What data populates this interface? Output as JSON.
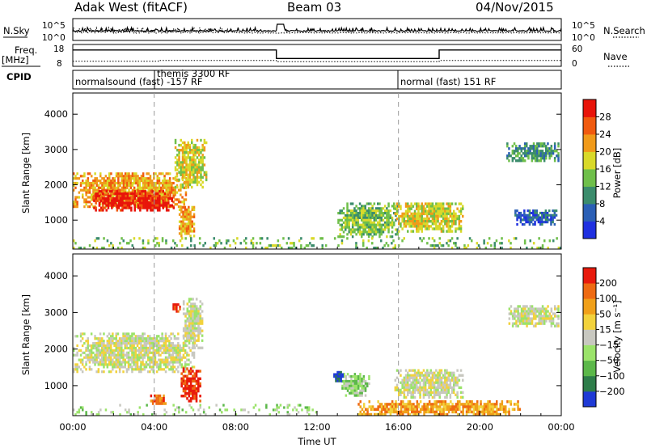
{
  "header": {
    "title": "Adak West (fitACF)",
    "beam": "Beam 03",
    "date": "04/Nov/2015"
  },
  "params": {
    "nsky_label": "N.Sky",
    "nsearch_label": "N.Search",
    "nsky_ticks": [
      "10^5",
      "10^0"
    ],
    "freq_label": "Freq.",
    "freq_unit": "[MHz]",
    "freq_ticks": [
      "18",
      "8"
    ],
    "nave_label": "Nave",
    "nave_ticks": [
      "60",
      "0"
    ],
    "cpid_label": "CPID",
    "cpid_segments": [
      {
        "label": "normalsound (fast) -157 RF",
        "start_hour": 0
      },
      {
        "label": "themis 3300 RF",
        "start_hour": 4
      },
      {
        "label": "normal (fast) 151 RF",
        "start_hour": 16
      }
    ],
    "freq_steps": [
      [
        0,
        15.5
      ],
      [
        10,
        15.5
      ],
      [
        10,
        11.6
      ],
      [
        18,
        11.6
      ],
      [
        18,
        15.5
      ],
      [
        24,
        15.5
      ]
    ],
    "nave_steps": [
      [
        0,
        14
      ],
      [
        4.2,
        14
      ],
      [
        4.2,
        16
      ],
      [
        10,
        16
      ],
      [
        10,
        13
      ],
      [
        18,
        13
      ],
      [
        18,
        16
      ],
      [
        24,
        16
      ]
    ]
  },
  "chart_data": [
    {
      "type": "heatmap",
      "name": "power",
      "ylabel": "Slant Range [km]",
      "xlabel": "Time UT",
      "ylim": [
        180,
        4600
      ],
      "xlim": [
        0,
        24
      ],
      "yticks": [
        "1000",
        "2000",
        "3000",
        "4000"
      ],
      "xticks": [
        "00:00",
        "04:00",
        "08:00",
        "12:00",
        "16:00",
        "20:00",
        "00:00"
      ],
      "colorbar_label": "Power [dB]",
      "colorbar_ticks": [
        "4",
        "8",
        "12",
        "16",
        "20",
        "24",
        "28"
      ],
      "colorbar_range": [
        0,
        32
      ],
      "colors": [
        "#1f30e0",
        "#2b5fb5",
        "#3b8c6c",
        "#6fbf4a",
        "#d9d92a",
        "#f09a1a",
        "#f05a0f",
        "#e8140a"
      ],
      "regions": [
        {
          "t0": 0.0,
          "t1": 5.6,
          "r0": 1350,
          "r1": 2350,
          "level": 5
        },
        {
          "t0": 1.0,
          "t1": 5.0,
          "r0": 1250,
          "r1": 1850,
          "level": 7
        },
        {
          "t0": 5.0,
          "t1": 6.6,
          "r0": 1900,
          "r1": 3300,
          "level": 4
        },
        {
          "t0": 5.2,
          "t1": 6.0,
          "r0": 520,
          "r1": 1400,
          "level": 5
        },
        {
          "t0": 13.0,
          "t1": 16.0,
          "r0": 500,
          "r1": 1500,
          "level": 3
        },
        {
          "t0": 15.8,
          "t1": 19.2,
          "r0": 650,
          "r1": 1500,
          "level": 4
        },
        {
          "t0": 21.3,
          "t1": 23.9,
          "r0": 2650,
          "r1": 3200,
          "level": 2
        },
        {
          "t0": 21.7,
          "t1": 23.8,
          "r0": 850,
          "r1": 1300,
          "level": 1
        },
        {
          "t0": 0.0,
          "t1": 24.0,
          "r0": 180,
          "r1": 520,
          "level": 3
        }
      ]
    },
    {
      "type": "heatmap",
      "name": "velocity",
      "ylabel": "Slant Range [km]",
      "xlabel": "Time UT",
      "ylim": [
        180,
        4600
      ],
      "xlim": [
        0,
        24
      ],
      "yticks": [
        "1000",
        "2000",
        "3000",
        "4000"
      ],
      "xticks": [
        "00:00",
        "04:00",
        "08:00",
        "12:00",
        "16:00",
        "20:00",
        "00:00"
      ],
      "colorbar_label": "Velocity [m s⁻¹]",
      "colorbar_ticks": [
        "200",
        "100",
        "50",
        "15",
        "−15",
        "−50",
        "−100",
        "−200"
      ],
      "colors": [
        "#1f3ad6",
        "#2e7d4a",
        "#5cb84a",
        "#9be36a",
        "#c8c8c0",
        "#f2d23c",
        "#f0a01a",
        "#ee6a12",
        "#e81a0c"
      ],
      "regions": [
        {
          "t0": 0.0,
          "t1": 6.0,
          "r0": 1350,
          "r1": 2450,
          "level": 4
        },
        {
          "t0": 5.4,
          "t1": 6.4,
          "r0": 2000,
          "r1": 3400,
          "level": 4
        },
        {
          "t0": 5.3,
          "t1": 6.3,
          "r0": 550,
          "r1": 1500,
          "level": 8
        },
        {
          "t0": 3.8,
          "t1": 4.6,
          "r0": 480,
          "r1": 760,
          "level": 7
        },
        {
          "t0": 4.9,
          "t1": 5.3,
          "r0": 3000,
          "r1": 3250,
          "level": 8
        },
        {
          "t0": 15.8,
          "t1": 19.2,
          "r0": 650,
          "r1": 1450,
          "level": 4
        },
        {
          "t0": 13.2,
          "t1": 14.6,
          "r0": 700,
          "r1": 1350,
          "level": 3
        },
        {
          "t0": 12.8,
          "t1": 13.3,
          "r0": 1100,
          "r1": 1400,
          "level": 0
        },
        {
          "t0": 14.0,
          "t1": 22.0,
          "r0": 180,
          "r1": 600,
          "level": 6
        },
        {
          "t0": 21.4,
          "t1": 23.9,
          "r0": 2600,
          "r1": 3200,
          "level": 4
        },
        {
          "t0": 0.0,
          "t1": 12.0,
          "r0": 180,
          "r1": 500,
          "level": 3
        }
      ]
    }
  ]
}
